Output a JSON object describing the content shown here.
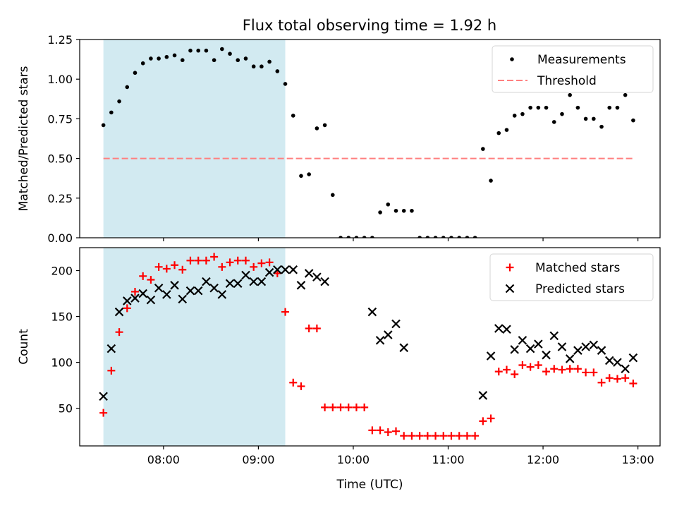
{
  "title": "Flux total observing time = 1.92 h",
  "colors": {
    "shade": "#add8e6",
    "measurement": "#000000",
    "threshold": "#ff7f7f",
    "matched": "#ff0000",
    "predicted": "#000000"
  },
  "chart_data": [
    {
      "type": "scatter",
      "ylabel": "Matched/Predicted stars",
      "xlabel": "",
      "xlim": [
        "07:07",
        "13:14"
      ],
      "ylim": [
        0,
        1.25
      ],
      "yticks": [
        0,
        0.25,
        0.5,
        0.75,
        1.0,
        1.25
      ],
      "ytick_labels": [
        "0.00",
        "0.25",
        "0.50",
        "0.75",
        "1.00",
        "1.25"
      ],
      "xticks": [
        "08:00",
        "09:00",
        "10:00",
        "11:00",
        "12:00",
        "13:00"
      ],
      "shaded_interval": [
        "07:22",
        "09:17"
      ],
      "legend": {
        "placement": "upper right",
        "entries": [
          "Measurements",
          "Threshold"
        ]
      },
      "threshold": {
        "name": "Threshold",
        "x": [
          "07:22",
          "12:58"
        ],
        "y": 0.5,
        "style": "dashed"
      },
      "series": [
        {
          "name": "Measurements",
          "marker": "dot",
          "x": [
            "07:22",
            "07:27",
            "07:32",
            "07:37",
            "07:42",
            "07:47",
            "07:52",
            "07:57",
            "08:02",
            "08:07",
            "08:12",
            "08:17",
            "08:22",
            "08:27",
            "08:32",
            "08:37",
            "08:42",
            "08:47",
            "08:52",
            "08:57",
            "09:02",
            "09:07",
            "09:12",
            "09:17",
            "09:22",
            "09:27",
            "09:32",
            "09:37",
            "09:42",
            "09:47",
            "09:52",
            "09:57",
            "10:02",
            "10:07",
            "10:12",
            "10:17",
            "10:22",
            "10:27",
            "10:32",
            "10:37",
            "10:42",
            "10:47",
            "10:52",
            "10:57",
            "11:02",
            "11:07",
            "11:12",
            "11:17",
            "11:22",
            "11:27",
            "11:32",
            "11:37",
            "11:42",
            "11:47",
            "11:52",
            "11:57",
            "12:02",
            "12:07",
            "12:12",
            "12:17",
            "12:22",
            "12:27",
            "12:32",
            "12:37",
            "12:42",
            "12:47",
            "12:52",
            "12:57"
          ],
          "y": [
            0.71,
            0.79,
            0.86,
            0.95,
            1.04,
            1.1,
            1.13,
            1.13,
            1.14,
            1.15,
            1.12,
            1.18,
            1.18,
            1.18,
            1.12,
            1.19,
            1.16,
            1.12,
            1.13,
            1.08,
            1.08,
            1.11,
            1.05,
            0.97,
            0.77,
            0.39,
            0.4,
            0.69,
            0.71,
            0.27,
            0.0,
            0.0,
            0.0,
            0.0,
            0.0,
            0.16,
            0.21,
            0.17,
            0.17,
            0.17,
            0.0,
            0.0,
            0.0,
            0.0,
            0.0,
            0.0,
            0.0,
            0.0,
            0.56,
            0.36,
            0.66,
            0.68,
            0.77,
            0.78,
            0.82,
            0.82,
            0.82,
            0.73,
            0.78,
            0.9,
            0.82,
            0.75,
            0.75,
            0.7,
            0.82,
            0.82,
            0.9,
            0.74
          ]
        }
      ]
    },
    {
      "type": "scatter",
      "ylabel": "Count",
      "xlabel": "Time (UTC)",
      "xlim": [
        "07:07",
        "13:14"
      ],
      "ylim": [
        9,
        225
      ],
      "yticks": [
        50,
        100,
        150,
        200
      ],
      "ytick_labels": [
        "50",
        "100",
        "150",
        "200"
      ],
      "xticks": [
        "08:00",
        "09:00",
        "10:00",
        "11:00",
        "12:00",
        "13:00"
      ],
      "shaded_interval": [
        "07:22",
        "09:17"
      ],
      "legend": {
        "placement": "upper right",
        "entries": [
          "Matched stars",
          "Predicted stars"
        ]
      },
      "series": [
        {
          "name": "Matched stars",
          "marker": "plus",
          "x": [
            "07:22",
            "07:27",
            "07:32",
            "07:37",
            "07:42",
            "07:47",
            "07:52",
            "07:57",
            "08:02",
            "08:07",
            "08:12",
            "08:17",
            "08:22",
            "08:27",
            "08:32",
            "08:37",
            "08:42",
            "08:47",
            "08:52",
            "08:57",
            "09:02",
            "09:07",
            "09:12",
            "09:17",
            "09:22",
            "09:27",
            "09:32",
            "09:37",
            "09:42",
            "09:47",
            "09:52",
            "09:57",
            "10:02",
            "10:07",
            "10:12",
            "10:17",
            "10:22",
            "10:27",
            "10:32",
            "10:37",
            "10:42",
            "10:47",
            "10:52",
            "10:57",
            "11:02",
            "11:07",
            "11:12",
            "11:17",
            "11:22",
            "11:27",
            "11:32",
            "11:37",
            "11:42",
            "11:47",
            "11:52",
            "11:57",
            "12:02",
            "12:07",
            "12:12",
            "12:17",
            "12:22",
            "12:27",
            "12:32",
            "12:37",
            "12:42",
            "12:47",
            "12:52",
            "12:57"
          ],
          "y": [
            45,
            91,
            133,
            159,
            177,
            194,
            190,
            204,
            202,
            206,
            201,
            211,
            211,
            211,
            215,
            204,
            209,
            211,
            211,
            204,
            208,
            209,
            197,
            155,
            78,
            74,
            137,
            137,
            51,
            51,
            51,
            51,
            51,
            51,
            26,
            26,
            24,
            25,
            20,
            20,
            20,
            20,
            20,
            20,
            20,
            20,
            20,
            20,
            36,
            39,
            90,
            92,
            87,
            97,
            95,
            97,
            90,
            93,
            92,
            93,
            93,
            89,
            89,
            78,
            83,
            82,
            83,
            77
          ]
        },
        {
          "name": "Predicted stars",
          "marker": "x",
          "x": [
            "07:22",
            "07:27",
            "07:32",
            "07:37",
            "07:42",
            "07:47",
            "07:52",
            "07:57",
            "08:02",
            "08:07",
            "08:12",
            "08:17",
            "08:22",
            "08:27",
            "08:32",
            "08:37",
            "08:42",
            "08:47",
            "08:52",
            "08:57",
            "09:02",
            "09:07",
            "09:12",
            "09:17",
            "09:22",
            "09:27",
            "09:32",
            "09:37",
            "09:42",
            "10:12",
            "10:17",
            "10:22",
            "10:27",
            "10:32",
            "11:22",
            "11:27",
            "11:32",
            "11:37",
            "11:42",
            "11:47",
            "11:52",
            "11:57",
            "12:02",
            "12:07",
            "12:12",
            "12:17",
            "12:22",
            "12:27",
            "12:32",
            "12:37",
            "12:42",
            "12:47",
            "12:52",
            "12:57"
          ],
          "y": [
            63,
            115,
            155,
            167,
            170,
            175,
            168,
            181,
            174,
            184,
            169,
            178,
            178,
            188,
            181,
            174,
            186,
            186,
            195,
            188,
            188,
            198,
            201,
            201,
            201,
            184,
            197,
            193,
            188,
            155,
            124,
            130,
            142,
            116,
            64,
            107,
            137,
            136,
            114,
            124,
            115,
            120,
            108,
            129,
            117,
            104,
            113,
            117,
            119,
            113,
            102,
            100,
            93,
            105
          ]
        }
      ]
    }
  ]
}
